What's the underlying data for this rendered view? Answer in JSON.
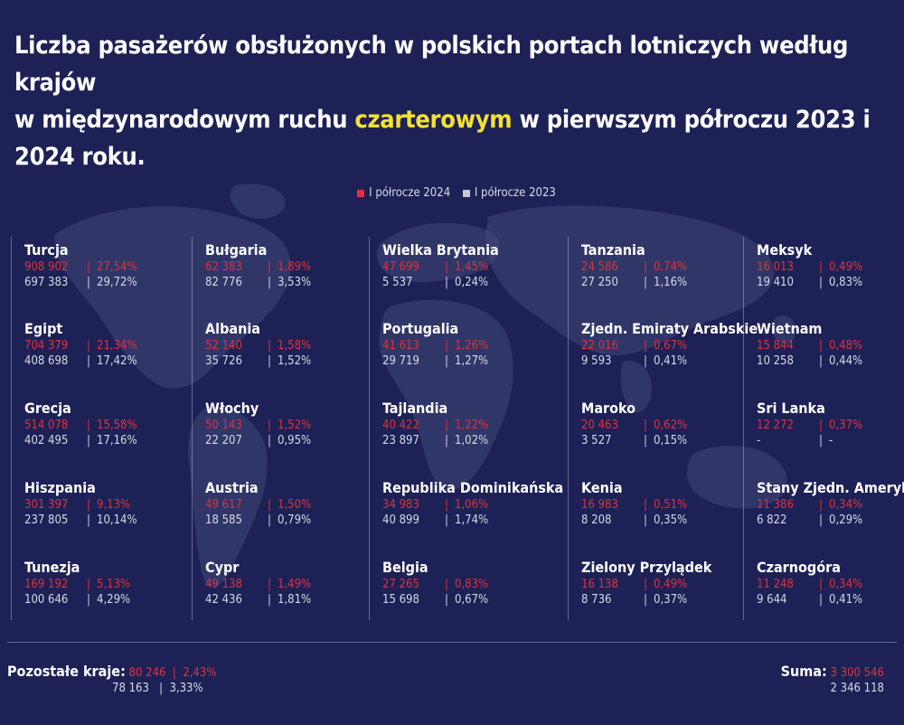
{
  "title": {
    "line1": "Liczba pasażerów obsłużonych w polskich portach lotniczych według krajów",
    "line2_a": "w międzynarodowym ruchu ",
    "line2_hl": "czarterowym",
    "line2_b": " w pierwszym półroczu 2023 i 2024 roku."
  },
  "colors": {
    "background": "#1d2155",
    "series_2024": "#e0323d",
    "series_2023": "#d8d9e4",
    "highlight": "#f4e130"
  },
  "chart_data": {
    "type": "table",
    "title": "Liczba pasażerów obsłużonych w polskich portach lotniczych według krajów w międzynarodowym ruchu czarterowym w pierwszym półroczu 2023 i 2024 roku.",
    "legend": {
      "placement": "top-center",
      "entries": [
        "I półrocze 2024",
        "I półrocze 2023"
      ]
    },
    "columns": [
      [
        {
          "country": "Turcja",
          "v2024": "908 902",
          "p2024": "27,54%",
          "v2023": "697 383",
          "p2023": "29,72%"
        },
        {
          "country": "Egipt",
          "v2024": "704 379",
          "p2024": "21,34%",
          "v2023": "408 698",
          "p2023": "17,42%"
        },
        {
          "country": "Grecja",
          "v2024": "514 078",
          "p2024": "15,58%",
          "v2023": "402 495",
          "p2023": "17,16%"
        },
        {
          "country": "Hiszpania",
          "v2024": "301 397",
          "p2024": "9,13%",
          "v2023": "237 805",
          "p2023": "10,14%"
        },
        {
          "country": "Tunezja",
          "v2024": "169 192",
          "p2024": "5,13%",
          "v2023": "100 646",
          "p2023": "4,29%"
        }
      ],
      [
        {
          "country": "Bułgaria",
          "v2024": "62 383",
          "p2024": "1,89%",
          "v2023": "82 776",
          "p2023": "3,53%"
        },
        {
          "country": "Albania",
          "v2024": "52 140",
          "p2024": "1,58%",
          "v2023": "35 726",
          "p2023": "1,52%"
        },
        {
          "country": "Włochy",
          "v2024": "50 143",
          "p2024": "1,52%",
          "v2023": "22 207",
          "p2023": "0,95%"
        },
        {
          "country": "Austria",
          "v2024": "49 617",
          "p2024": "1,50%",
          "v2023": "18 585",
          "p2023": "0,79%"
        },
        {
          "country": "Cypr",
          "v2024": "49 138",
          "p2024": "1,49%",
          "v2023": "42 436",
          "p2023": "1,81%"
        }
      ],
      [
        {
          "country": "Wielka Brytania",
          "v2024": "47 699",
          "p2024": "1,45%",
          "v2023": "5 537",
          "p2023": "0,24%"
        },
        {
          "country": "Portugalia",
          "v2024": "41 613",
          "p2024": "1,26%",
          "v2023": "29 719",
          "p2023": "1,27%"
        },
        {
          "country": "Tajlandia",
          "v2024": "40 422",
          "p2024": "1,22%",
          "v2023": "23 897",
          "p2023": "1,02%"
        },
        {
          "country": "Republika Dominikańska",
          "v2024": "34 983",
          "p2024": "1,06%",
          "v2023": "40 899",
          "p2023": "1,74%"
        },
        {
          "country": "Belgia",
          "v2024": "27 265",
          "p2024": "0,83%",
          "v2023": "15 698",
          "p2023": "0,67%"
        }
      ],
      [
        {
          "country": "Tanzania",
          "v2024": "24 586",
          "p2024": "0,74%",
          "v2023": "27 250",
          "p2023": "1,16%"
        },
        {
          "country": "Zjedn. Emiraty Arabskie",
          "v2024": "22 016",
          "p2024": "0,67%",
          "v2023": "9 593",
          "p2023": "0,41%"
        },
        {
          "country": "Maroko",
          "v2024": "20 463",
          "p2024": "0,62%",
          "v2023": "3 527",
          "p2023": "0,15%"
        },
        {
          "country": "Kenia",
          "v2024": "16 983",
          "p2024": "0,51%",
          "v2023": "8 208",
          "p2023": "0,35%"
        },
        {
          "country": "Zielony Przylądek",
          "v2024": "16 138",
          "p2024": "0,49%",
          "v2023": "8 736",
          "p2023": "0,37%"
        }
      ],
      [
        {
          "country": "Meksyk",
          "v2024": "16 013",
          "p2024": "0,49%",
          "v2023": "19 410",
          "p2023": "0,83%"
        },
        {
          "country": "Wietnam",
          "v2024": "15 844",
          "p2024": "0,48%",
          "v2023": "10 258",
          "p2023": "0,44%"
        },
        {
          "country": "Sri Lanka",
          "v2024": "12 272",
          "p2024": "0,37%",
          "v2023": "-",
          "p2023": "-"
        },
        {
          "country": "Stany Zjedn. Ameryki",
          "v2024": "11 386",
          "p2024": "0,34%",
          "v2023": "6 822",
          "p2023": "0,29%"
        },
        {
          "country": "Czarnogóra",
          "v2024": "11 248",
          "p2024": "0,34%",
          "v2023": "9 644",
          "p2023": "0,41%"
        }
      ]
    ],
    "other": {
      "label": "Pozostałe kraje:",
      "v2024": "80 246",
      "p2024": "2,43%",
      "v2023": "78 163",
      "p2023": "3,33%"
    },
    "sum": {
      "label": "Suma:",
      "v2024": "3 300 546",
      "v2023": "2 346 118"
    }
  }
}
